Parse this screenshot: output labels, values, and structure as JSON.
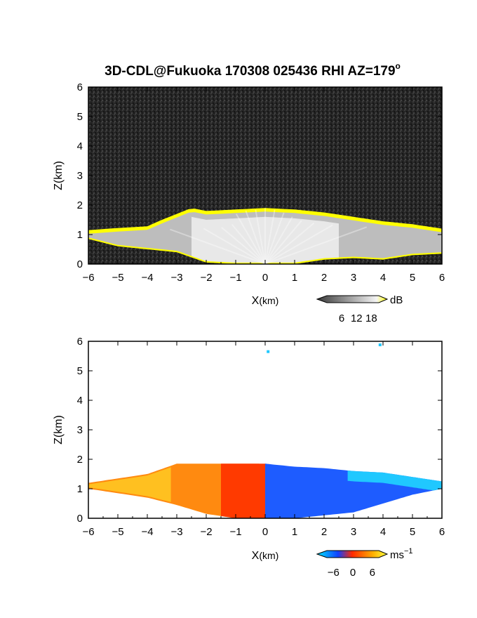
{
  "title": "3D-CDL@Fukuoka 170308 025436 RHI AZ=179",
  "title_sup": "o",
  "chart_data": [
    {
      "type": "heatmap",
      "panel": "reflectivity",
      "xlabel_main": "X",
      "xlabel_unit": "(km)",
      "ylabel": "Z(km)",
      "xlim": [
        -6,
        6
      ],
      "ylim": [
        0,
        6
      ],
      "x_ticks": [
        -6,
        -5,
        -4,
        -3,
        -2,
        -1,
        0,
        1,
        2,
        3,
        4,
        5,
        6
      ],
      "y_ticks": [
        0,
        1,
        2,
        3,
        4,
        5,
        6
      ],
      "colorbar": {
        "label": "dB",
        "ticks": [
          6,
          12,
          18
        ],
        "range": [
          0,
          21
        ]
      },
      "colors": {
        "background": "#222222",
        "low": "#3a3a3a",
        "high": "#f4f4f4",
        "saturated": "#ffff00"
      },
      "top_height_km": [
        [
          -6,
          1.15
        ],
        [
          -5,
          1.22
        ],
        [
          -4,
          1.28
        ],
        [
          -3.5,
          1.5
        ],
        [
          -3,
          1.7
        ],
        [
          -2.5,
          1.9
        ],
        [
          -2,
          1.8
        ],
        [
          -1,
          1.85
        ],
        [
          0,
          1.9
        ],
        [
          1,
          1.85
        ],
        [
          2,
          1.75
        ],
        [
          3,
          1.6
        ],
        [
          4,
          1.45
        ],
        [
          5,
          1.35
        ],
        [
          6,
          1.2
        ]
      ],
      "bottom_height_km": [
        [
          -6,
          0.85
        ],
        [
          -5,
          0.6
        ],
        [
          -4,
          0.5
        ],
        [
          -3,
          0.4
        ],
        [
          -2,
          0.05
        ],
        [
          -1,
          0.0
        ],
        [
          0,
          0.0
        ],
        [
          1,
          0.0
        ],
        [
          2,
          0.15
        ],
        [
          3,
          0.2
        ],
        [
          4,
          0.15
        ],
        [
          5,
          0.3
        ],
        [
          6,
          0.35
        ]
      ]
    },
    {
      "type": "heatmap",
      "panel": "doppler_velocity",
      "xlabel_main": "X",
      "xlabel_unit": "(km)",
      "ylabel": "Z(km)",
      "xlim": [
        -6,
        6
      ],
      "ylim": [
        0,
        6
      ],
      "x_ticks": [
        -6,
        -5,
        -4,
        -3,
        -2,
        -1,
        0,
        1,
        2,
        3,
        4,
        5,
        6
      ],
      "y_ticks": [
        0,
        1,
        2,
        3,
        4,
        5,
        6
      ],
      "colorbar": {
        "label": "ms",
        "label_sup": "−1",
        "ticks": [
          "−6",
          "0",
          "6"
        ],
        "range": [
          -8,
          8
        ]
      },
      "colors": {
        "negative": "#1040ff",
        "negative_edge": "#00e5ff",
        "near_zero": "#ff2a00",
        "positive": "#ffb000",
        "positive_edge": "#ffff40"
      },
      "top_height_km": [
        [
          -6,
          1.2
        ],
        [
          -5,
          1.35
        ],
        [
          -4,
          1.5
        ],
        [
          -3,
          1.85
        ],
        [
          -2,
          1.85
        ],
        [
          -1,
          1.85
        ],
        [
          0,
          1.85
        ],
        [
          1,
          1.75
        ],
        [
          2,
          1.7
        ],
        [
          3,
          1.6
        ],
        [
          4,
          1.55
        ],
        [
          5,
          1.4
        ],
        [
          6,
          1.25
        ]
      ],
      "bottom_height_km": [
        [
          -6,
          1.0
        ],
        [
          -5,
          0.85
        ],
        [
          -4,
          0.7
        ],
        [
          -3,
          0.45
        ],
        [
          -2,
          0.15
        ],
        [
          -1,
          0.0
        ],
        [
          0,
          0.0
        ],
        [
          1,
          0.0
        ],
        [
          2,
          0.1
        ],
        [
          3,
          0.2
        ],
        [
          4,
          0.5
        ],
        [
          5,
          0.8
        ],
        [
          6,
          1.0
        ]
      ],
      "isolated_points": [
        {
          "x": 0.1,
          "z": 5.65
        },
        {
          "x": 3.9,
          "z": 5.88
        }
      ]
    }
  ]
}
